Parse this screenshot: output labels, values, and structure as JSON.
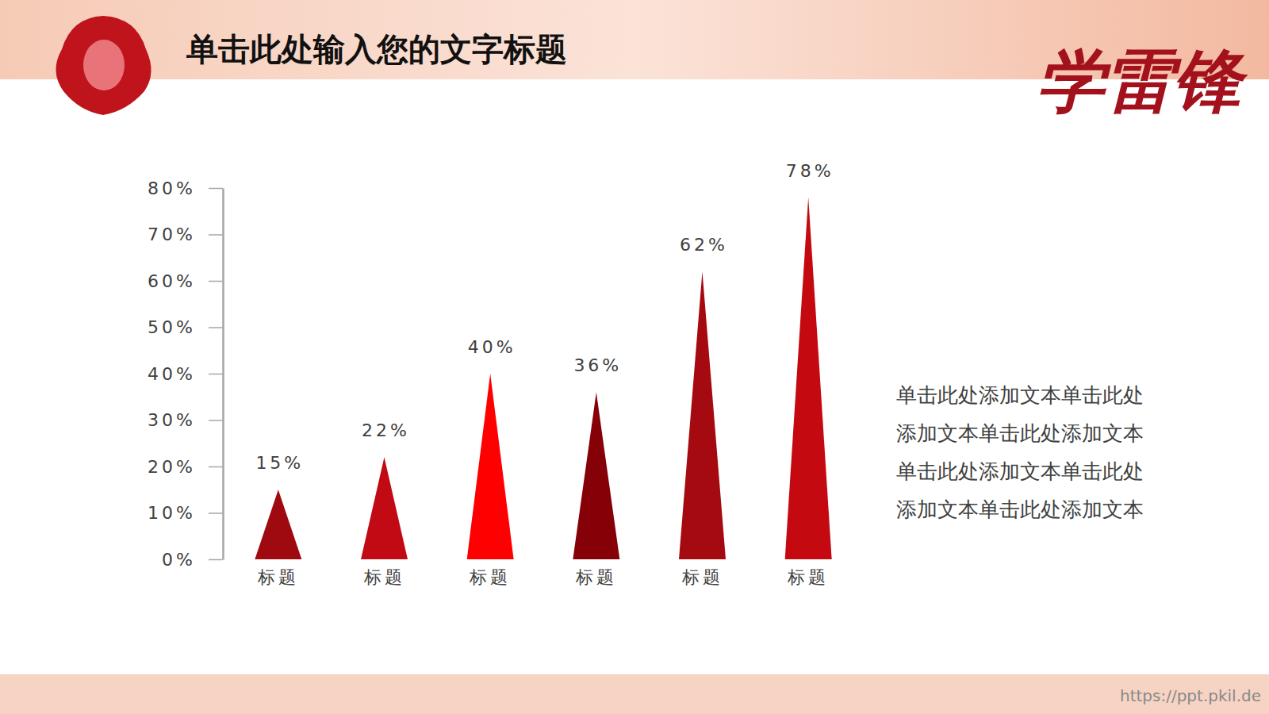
{
  "chart_data": {
    "type": "bar",
    "title": "单击此处输入您的文字标题",
    "categories": [
      "标题",
      "标题",
      "标题",
      "标题",
      "标题",
      "标题"
    ],
    "values": [
      15,
      22,
      40,
      36,
      62,
      78
    ],
    "value_labels": [
      "15%",
      "22%",
      "40%",
      "36%",
      "62%",
      "78%"
    ],
    "colors": [
      "#9e0a10",
      "#c20a14",
      "#ff0000",
      "#860008",
      "#a50a10",
      "#c40a10"
    ],
    "ylim": [
      0,
      80
    ],
    "yticks": [
      {
        "value": 0,
        "label": "0%"
      },
      {
        "value": 10,
        "label": "10%"
      },
      {
        "value": 20,
        "label": "20%"
      },
      {
        "value": 30,
        "label": "30%"
      },
      {
        "value": 40,
        "label": "40%"
      },
      {
        "value": 50,
        "label": "50%"
      },
      {
        "value": 60,
        "label": "60%"
      },
      {
        "value": 70,
        "label": "70%"
      },
      {
        "value": 80,
        "label": "80%"
      }
    ],
    "grid": false,
    "data_labels": true,
    "annotations": [
      "学雷锋",
      "单击此处添加文本单击此处添加文本单击此处添加文本单击此处添加文本单击此处添加文本单击此处添加文本",
      "https://ppt.pkil.de"
    ]
  }
}
